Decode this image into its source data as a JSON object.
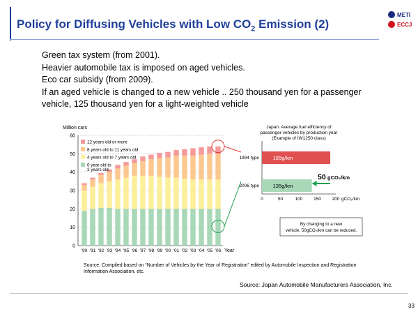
{
  "slide": {
    "title_main": "Policy for Diffusing Vehicles with Low CO",
    "title_sub": "2",
    "title_end": " Emission (2)",
    "logos": [
      {
        "label": "METI",
        "color": "#1a2a80"
      },
      {
        "label": "ECCJ",
        "color": "#d01020"
      }
    ],
    "body_lines": [
      "Green tax system (from 2001).",
      "Heavier automobile tax is imposed on aged vehicles.",
      "Eco car subsidy (from 2009).",
      "If an aged vehicle is changed to a new vehicle .. 250 thousand yen for a passenger",
      "vehicle, 125 thousand yen for a light-weighted vehicle"
    ],
    "source_left": "Source: Compiled based on “Number of Vehicles by the Year of Registration” edited by Automobile Inspection and Registration Information Association, etc.",
    "source_right": "Source: Japan Automobile Manufacturers Association, Inc.",
    "page_number": "33"
  },
  "chart_data": [
    {
      "type": "bar",
      "stacked": true,
      "ylabel": "Million cars",
      "xlabel": "Year",
      "ylim": [
        0,
        60
      ],
      "yticks": [
        0,
        10,
        20,
        30,
        40,
        50,
        60
      ],
      "categories": [
        "'90",
        "'91",
        "'92",
        "'93",
        "'94",
        "'95",
        "'96",
        "'97",
        "'98",
        "'99",
        "'00",
        "'01",
        "'02",
        "'03",
        "'04",
        "'05",
        "'06"
      ],
      "series": [
        {
          "name": "0 year old to 3 years old",
          "color": "#a8d8b8",
          "values": [
            19,
            20,
            20.5,
            20.5,
            20,
            20,
            20,
            20,
            20,
            20,
            20,
            20,
            20,
            20,
            20,
            20,
            20
          ]
        },
        {
          "name": "4 years old to 7 years old",
          "color": "#fbef9a",
          "values": [
            11,
            12,
            13.5,
            14.5,
            16,
            17,
            18,
            18,
            18,
            17.5,
            17,
            17,
            16.5,
            16,
            16,
            16,
            16
          ]
        },
        {
          "name": "8 years old to 11 years old",
          "color": "#fbc890",
          "values": [
            3,
            4,
            4.5,
            5,
            6,
            6.5,
            7,
            8,
            9,
            10,
            11,
            12,
            12.5,
            13,
            13.5,
            14,
            14
          ]
        },
        {
          "name": "12 years old or more",
          "color": "#f59a9a",
          "values": [
            1,
            1,
            1,
            1.5,
            2,
            2,
            2,
            2.5,
            2.5,
            3,
            3,
            3,
            3.5,
            4,
            4,
            4,
            4
          ]
        }
      ],
      "legend": "top-left"
    },
    {
      "type": "bar",
      "orientation": "horizontal",
      "title": "Japan: Average fuel efficiency of passenger vehicles by production year (Example of IW1250 class)",
      "categories": [
        "1994 type",
        "2006 type"
      ],
      "values": [
        185,
        135
      ],
      "value_labels": [
        "185g/km",
        "135g/km"
      ],
      "colors": [
        "#e05050",
        "#a8d8b8"
      ],
      "xlim": [
        0,
        200
      ],
      "xticks": [
        0,
        50,
        100,
        150,
        200
      ],
      "x_unit": "gCO₂/km",
      "difference_label": "50",
      "difference_unit": "gCO₂/km",
      "note": "By changing to a new vehicle, 50gCO₂/km can be reduced."
    }
  ]
}
